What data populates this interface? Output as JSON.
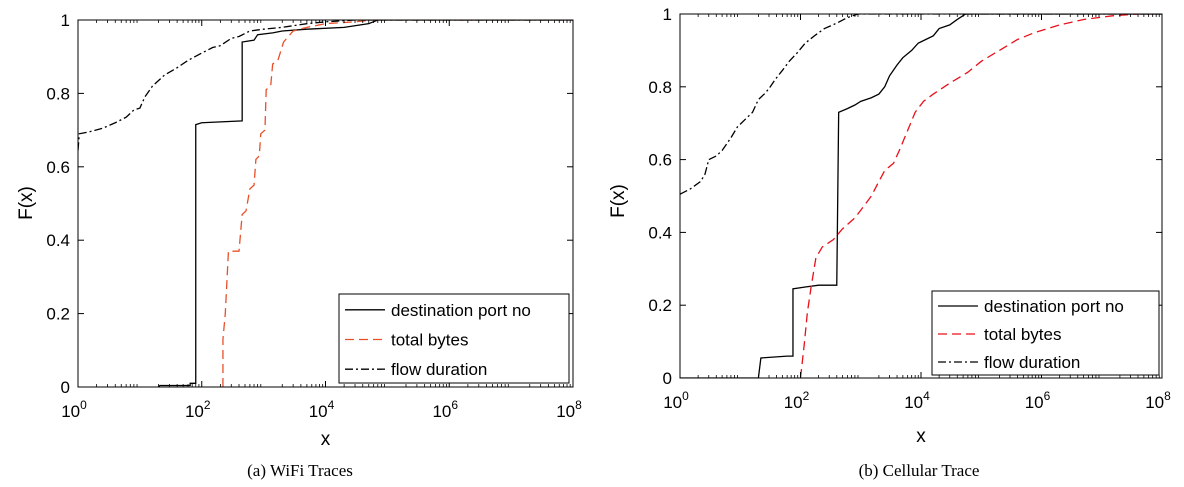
{
  "chart_data": [
    {
      "type": "line",
      "caption": "(a)  WiFi Traces",
      "xlabel": "x",
      "ylabel": "F(x)",
      "xscale": "log",
      "xlim": [
        1,
        100000000
      ],
      "ylim": [
        0,
        1
      ],
      "xticks": [
        1,
        100,
        10000,
        1000000,
        100000000
      ],
      "xtick_base": "10",
      "xtick_exponents": [
        "0",
        "2",
        "4",
        "6",
        "8"
      ],
      "yticks": [
        "0",
        "0.2",
        "0.4",
        "0.6",
        "0.8",
        "1"
      ],
      "ytick_values": [
        0,
        0.2,
        0.4,
        0.6,
        0.8,
        1
      ],
      "grid": false,
      "legend_position": "bottom-right",
      "series": [
        {
          "name": "destination port no",
          "color": "#000000",
          "dash": "solid",
          "points": [
            [
              20,
              0
            ],
            [
              21,
              0.004
            ],
            [
              65,
              0.004
            ],
            [
              65,
              0.01
            ],
            [
              80,
              0.01
            ],
            [
              80,
              0.715
            ],
            [
              100,
              0.72
            ],
            [
              450,
              0.725
            ],
            [
              450,
              0.94
            ],
            [
              700,
              0.945
            ],
            [
              800,
              0.96
            ],
            [
              1400,
              0.965
            ],
            [
              2000,
              0.97
            ],
            [
              5000,
              0.975
            ],
            [
              20000,
              0.98
            ],
            [
              50000,
              0.99
            ],
            [
              70000,
              1
            ],
            [
              100000000,
              1
            ]
          ]
        },
        {
          "name": "total bytes",
          "color": "#e8502a",
          "dash": "dashed",
          "points": [
            [
              220,
              0
            ],
            [
              220,
              0.13
            ],
            [
              240,
              0.2
            ],
            [
              270,
              0.37
            ],
            [
              400,
              0.37
            ],
            [
              450,
              0.47
            ],
            [
              520,
              0.48
            ],
            [
              600,
              0.54
            ],
            [
              700,
              0.55
            ],
            [
              750,
              0.62
            ],
            [
              850,
              0.63
            ],
            [
              900,
              0.69
            ],
            [
              1050,
              0.7
            ],
            [
              1100,
              0.81
            ],
            [
              1300,
              0.82
            ],
            [
              1400,
              0.88
            ],
            [
              1700,
              0.89
            ],
            [
              2100,
              0.94
            ],
            [
              3000,
              0.97
            ],
            [
              5000,
              0.98
            ],
            [
              10000,
              0.99
            ],
            [
              30000,
              0.995
            ],
            [
              60000,
              1
            ],
            [
              100000000,
              1
            ]
          ]
        },
        {
          "name": "flow duration",
          "color": "#000000",
          "dash": "dashdot",
          "points": [
            [
              1,
              0.645
            ],
            [
              1.05,
              0.69
            ],
            [
              1.5,
              0.695
            ],
            [
              2.5,
              0.705
            ],
            [
              4,
              0.72
            ],
            [
              6,
              0.735
            ],
            [
              8,
              0.755
            ],
            [
              10,
              0.76
            ],
            [
              12,
              0.79
            ],
            [
              16,
              0.82
            ],
            [
              25,
              0.85
            ],
            [
              40,
              0.87
            ],
            [
              60,
              0.89
            ],
            [
              100,
              0.91
            ],
            [
              150,
              0.925
            ],
            [
              200,
              0.93
            ],
            [
              300,
              0.95
            ],
            [
              400,
              0.955
            ],
            [
              600,
              0.97
            ],
            [
              1000,
              0.975
            ],
            [
              2000,
              0.98
            ],
            [
              5000,
              0.99
            ],
            [
              10000,
              0.995
            ],
            [
              30000,
              1
            ],
            [
              100000000,
              1
            ]
          ]
        }
      ]
    },
    {
      "type": "line",
      "caption": "(b)  Cellular Trace",
      "xlabel": "x",
      "ylabel": "F(x)",
      "xscale": "log",
      "xlim": [
        1,
        100000000
      ],
      "ylim": [
        0,
        1
      ],
      "xticks": [
        1,
        100,
        10000,
        1000000,
        100000000
      ],
      "xtick_base": "10",
      "xtick_exponents": [
        "0",
        "2",
        "4",
        "6",
        "8"
      ],
      "yticks": [
        "0",
        "0.2",
        "0.4",
        "0.6",
        "0.8",
        "1"
      ],
      "ytick_values": [
        0,
        0.2,
        0.4,
        0.6,
        0.8,
        1
      ],
      "grid": false,
      "legend_position": "bottom-right",
      "series": [
        {
          "name": "destination port no",
          "color": "#000000",
          "dash": "solid",
          "points": [
            [
              1,
              0
            ],
            [
              20,
              0
            ],
            [
              22,
              0.055
            ],
            [
              60,
              0.06
            ],
            [
              75,
              0.06
            ],
            [
              75,
              0.245
            ],
            [
              120,
              0.25
            ],
            [
              200,
              0.255
            ],
            [
              400,
              0.255
            ],
            [
              430,
              0.73
            ],
            [
              600,
              0.74
            ],
            [
              800,
              0.75
            ],
            [
              1000,
              0.76
            ],
            [
              1500,
              0.77
            ],
            [
              2000,
              0.78
            ],
            [
              2500,
              0.8
            ],
            [
              3000,
              0.83
            ],
            [
              4000,
              0.86
            ],
            [
              5000,
              0.88
            ],
            [
              7000,
              0.9
            ],
            [
              9000,
              0.92
            ],
            [
              12000,
              0.93
            ],
            [
              16000,
              0.94
            ],
            [
              20000,
              0.96
            ],
            [
              30000,
              0.97
            ],
            [
              40000,
              0.985
            ],
            [
              55000,
              1
            ],
            [
              100000000,
              1
            ]
          ]
        },
        {
          "name": "total bytes",
          "color": "#e8101a",
          "dash": "dashed",
          "points": [
            [
              100,
              0
            ],
            [
              115,
              0.09
            ],
            [
              130,
              0.18
            ],
            [
              150,
              0.25
            ],
            [
              180,
              0.33
            ],
            [
              230,
              0.36
            ],
            [
              350,
              0.38
            ],
            [
              500,
              0.41
            ],
            [
              800,
              0.44
            ],
            [
              1100,
              0.47
            ],
            [
              1500,
              0.5
            ],
            [
              2000,
              0.54
            ],
            [
              2500,
              0.57
            ],
            [
              3500,
              0.59
            ],
            [
              4500,
              0.63
            ],
            [
              6000,
              0.68
            ],
            [
              8000,
              0.73
            ],
            [
              11000,
              0.76
            ],
            [
              16000,
              0.78
            ],
            [
              30000,
              0.81
            ],
            [
              60000,
              0.84
            ],
            [
              100000,
              0.87
            ],
            [
              200000,
              0.9
            ],
            [
              400000,
              0.93
            ],
            [
              800000,
              0.95
            ],
            [
              2000000,
              0.97
            ],
            [
              5000000,
              0.985
            ],
            [
              15000000,
              0.995
            ],
            [
              40000000,
              1
            ],
            [
              100000000,
              1
            ]
          ]
        },
        {
          "name": "flow duration",
          "color": "#000000",
          "dash": "dashdot",
          "points": [
            [
              1,
              0.505
            ],
            [
              1.5,
              0.52
            ],
            [
              2.2,
              0.54
            ],
            [
              2.6,
              0.56
            ],
            [
              3,
              0.6
            ],
            [
              4,
              0.61
            ],
            [
              5,
              0.625
            ],
            [
              7,
              0.66
            ],
            [
              9,
              0.69
            ],
            [
              12,
              0.71
            ],
            [
              16,
              0.73
            ],
            [
              20,
              0.765
            ],
            [
              25,
              0.78
            ],
            [
              30,
              0.795
            ],
            [
              38,
              0.82
            ],
            [
              50,
              0.845
            ],
            [
              65,
              0.87
            ],
            [
              90,
              0.895
            ],
            [
              120,
              0.92
            ],
            [
              170,
              0.94
            ],
            [
              250,
              0.96
            ],
            [
              400,
              0.975
            ],
            [
              600,
              0.99
            ],
            [
              900,
              1
            ],
            [
              100000000,
              1
            ]
          ]
        }
      ]
    }
  ]
}
